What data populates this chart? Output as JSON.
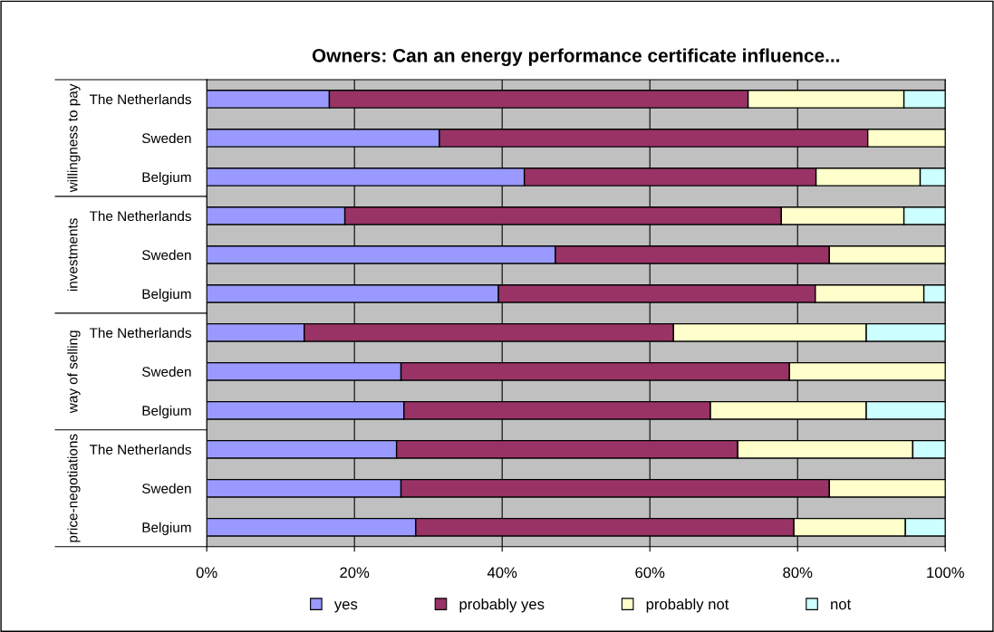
{
  "chart_data": {
    "type": "bar",
    "orientation": "horizontal",
    "stacked": true,
    "title": "Owners: Can an energy performance certificate influence...",
    "categories": [
      "The Netherlands",
      "Sweden",
      "Belgium",
      "The Netherlands",
      "Sweden",
      "Belgium",
      "The Netherlands",
      "Sweden",
      "Belgium",
      "The Netherlands",
      "Sweden",
      "Belgium"
    ],
    "annotations": [
      "willingness to pay",
      "investments",
      "way of selling",
      "price-negotiations"
    ],
    "series": [
      {
        "name": "yes",
        "color": "#9999ff",
        "values": [
          16.6,
          31.5,
          43.0,
          18.7,
          47.2,
          39.5,
          13.2,
          26.3,
          26.7,
          25.7,
          26.3,
          28.3
        ]
      },
      {
        "name": "probably yes",
        "color": "#993366",
        "values": [
          56.7,
          58.0,
          39.5,
          59.1,
          37.1,
          42.9,
          50.0,
          52.6,
          41.5,
          46.2,
          58.0,
          51.2
        ]
      },
      {
        "name": "probably not",
        "color": "#ffffcc",
        "values": [
          21.1,
          10.5,
          14.1,
          16.6,
          15.7,
          14.7,
          26.1,
          21.1,
          21.1,
          23.7,
          15.7,
          15.1
        ]
      },
      {
        "name": "not",
        "color": "#ccffff",
        "values": [
          5.6,
          null,
          3.4,
          5.6,
          null,
          2.9,
          10.7,
          null,
          10.7,
          4.4,
          null,
          5.4
        ]
      }
    ],
    "xlim": [
      0,
      100
    ],
    "xticks": [
      {
        "value": 0,
        "label": "0%"
      },
      {
        "value": 20,
        "label": "20%"
      },
      {
        "value": 40,
        "label": "40%"
      },
      {
        "value": 60,
        "label": "60%"
      },
      {
        "value": 80,
        "label": "80%"
      },
      {
        "value": 100,
        "label": "100%"
      }
    ],
    "grid": "x",
    "legend": "bottom",
    "marker": "square"
  }
}
